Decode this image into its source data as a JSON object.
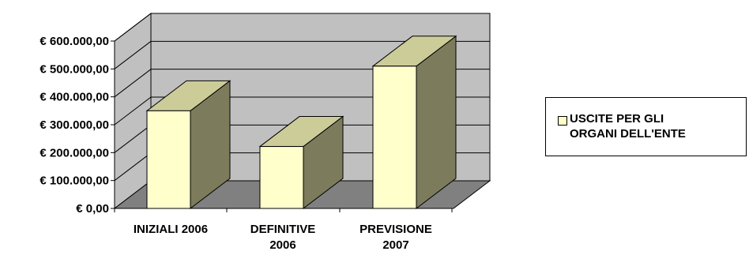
{
  "chart_data": {
    "type": "bar",
    "title": "",
    "xlabel": "",
    "ylabel": "",
    "categories": [
      "INIZIALI 2006",
      "DEFINITIVE 2006",
      "PREVISIONE 2007"
    ],
    "category_labels": [
      [
        "INIZIALI 2006"
      ],
      [
        "DEFINITIVE",
        "2006"
      ],
      [
        "PREVISIONE",
        "2007"
      ]
    ],
    "series": [
      {
        "name": "USCITE PER GLI ORGANI DELL'ENTE",
        "values": [
          350000,
          222000,
          510000
        ]
      }
    ],
    "ylim": [
      0,
      600000
    ],
    "y_ticks": [
      0,
      100000,
      200000,
      300000,
      400000,
      500000,
      600000
    ],
    "y_tick_labels": [
      "€ 0,00",
      "€ 100.000,00",
      "€ 200.000,00",
      "€ 300.000,00",
      "€ 400.000,00",
      "€ 500.000,00",
      "€ 600.000,00"
    ],
    "grid": true,
    "legend_position": "right",
    "style": "3d",
    "colors": {
      "bar_front": "#ffffcc",
      "bar_side": "#7c7c5d",
      "bar_top": "#cccc99",
      "back_wall": "#c0c0c0",
      "floor": "#808080"
    }
  },
  "legend": {
    "label": "USCITE PER GLI\nORGANI DELL'ENTE"
  }
}
